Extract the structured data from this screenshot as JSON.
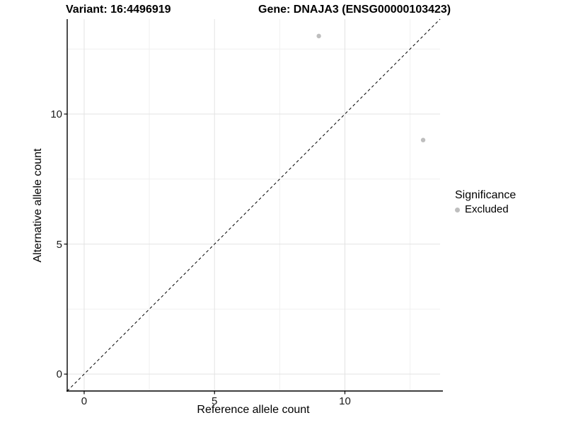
{
  "figure": {
    "background": "#ffffff"
  },
  "chart_data": {
    "type": "scatter",
    "title_left": "Variant: 16:4496919",
    "title_right": "Gene: DNAJA3 (ENSG00000103423)",
    "xlabel": "Reference allele count",
    "ylabel": "Alternative allele count",
    "xlim": [
      -0.65,
      13.65
    ],
    "ylim": [
      -0.65,
      13.65
    ],
    "x_ticks": {
      "values": [
        0,
        5,
        10
      ],
      "labels": [
        "0",
        "5",
        "10"
      ]
    },
    "y_ticks": {
      "values": [
        0,
        5,
        10
      ],
      "labels": [
        "0",
        "5",
        "10"
      ]
    },
    "x_minor": [
      2.5,
      7.5,
      12.5
    ],
    "y_minor": [
      2.5,
      7.5,
      12.5
    ],
    "grid": "on",
    "points": [
      {
        "x": 9,
        "y": 13,
        "group": "Excluded"
      },
      {
        "x": 13,
        "y": 9,
        "group": "Excluded"
      }
    ],
    "point_radius": 3.2,
    "identity_line": {
      "slope": 1,
      "intercept": 0,
      "linetype": "dashed"
    },
    "legend": {
      "title": "Significance",
      "position": "right",
      "items": [
        {
          "label": "Excluded",
          "color": "#bebebe",
          "marker": "circle"
        }
      ]
    }
  },
  "colors": {
    "point": "#bebebe",
    "grid_major": "#e3e3e3",
    "grid_minor": "#f0f0f0",
    "axis": "#000000",
    "identity_line": "#000000",
    "text": "#000000"
  }
}
